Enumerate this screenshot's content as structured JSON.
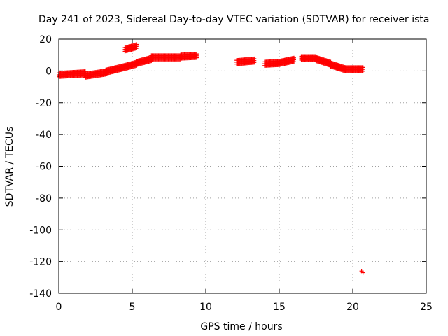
{
  "chart_data": {
    "type": "scatter",
    "title": "Day 241 of 2023, Sidereal Day-to-day VTEC variation (SDTVAR) for receiver ista",
    "xlabel": "GPS time / hours",
    "ylabel": "SDTVAR / TECUs",
    "xlim": [
      0,
      25
    ],
    "ylim": [
      -140,
      20
    ],
    "xticks": [
      0,
      5,
      10,
      15,
      20,
      25
    ],
    "yticks": [
      20,
      0,
      -20,
      -40,
      -60,
      -80,
      -100,
      -120,
      -140
    ],
    "grid": true,
    "legend": "none",
    "marker": "plus",
    "color": "#ff0000",
    "segments": [
      {
        "x_start": 0.0,
        "x_end": 1.8,
        "y_start": -2.5,
        "y_end": -1.5
      },
      {
        "x_start": 1.8,
        "x_end": 3.2,
        "y_start": -3.0,
        "y_end": -1.0
      },
      {
        "x_start": 3.2,
        "x_end": 4.5,
        "y_start": -0.5,
        "y_end": 2.5
      },
      {
        "x_start": 4.5,
        "x_end": 5.3,
        "y_start": 2.5,
        "y_end": 4.5
      },
      {
        "x_start": 5.3,
        "x_end": 6.3,
        "y_start": 5.0,
        "y_end": 7.5
      },
      {
        "x_start": 6.3,
        "x_end": 8.3,
        "y_start": 8.5,
        "y_end": 8.5
      },
      {
        "x_start": 8.3,
        "x_end": 9.4,
        "y_start": 9.0,
        "y_end": 9.5
      },
      {
        "x_start": 4.5,
        "x_end": 5.3,
        "y_start": 13.5,
        "y_end": 15.5
      },
      {
        "x_start": 12.1,
        "x_end": 13.3,
        "y_start": 5.5,
        "y_end": 6.5
      },
      {
        "x_start": 14.0,
        "x_end": 15.0,
        "y_start": 4.5,
        "y_end": 5.0
      },
      {
        "x_start": 15.0,
        "x_end": 16.0,
        "y_start": 5.0,
        "y_end": 7.0
      },
      {
        "x_start": 16.5,
        "x_end": 17.5,
        "y_start": 8.0,
        "y_end": 8.0
      },
      {
        "x_start": 17.5,
        "x_end": 18.5,
        "y_start": 7.5,
        "y_end": 4.5
      },
      {
        "x_start": 18.5,
        "x_end": 19.5,
        "y_start": 4.0,
        "y_end": 1.0
      },
      {
        "x_start": 19.5,
        "x_end": 20.7,
        "y_start": 1.0,
        "y_end": 1.0
      }
    ],
    "outliers": [
      {
        "x": 20.6,
        "y": -126
      },
      {
        "x": 20.7,
        "y": -127
      }
    ]
  }
}
